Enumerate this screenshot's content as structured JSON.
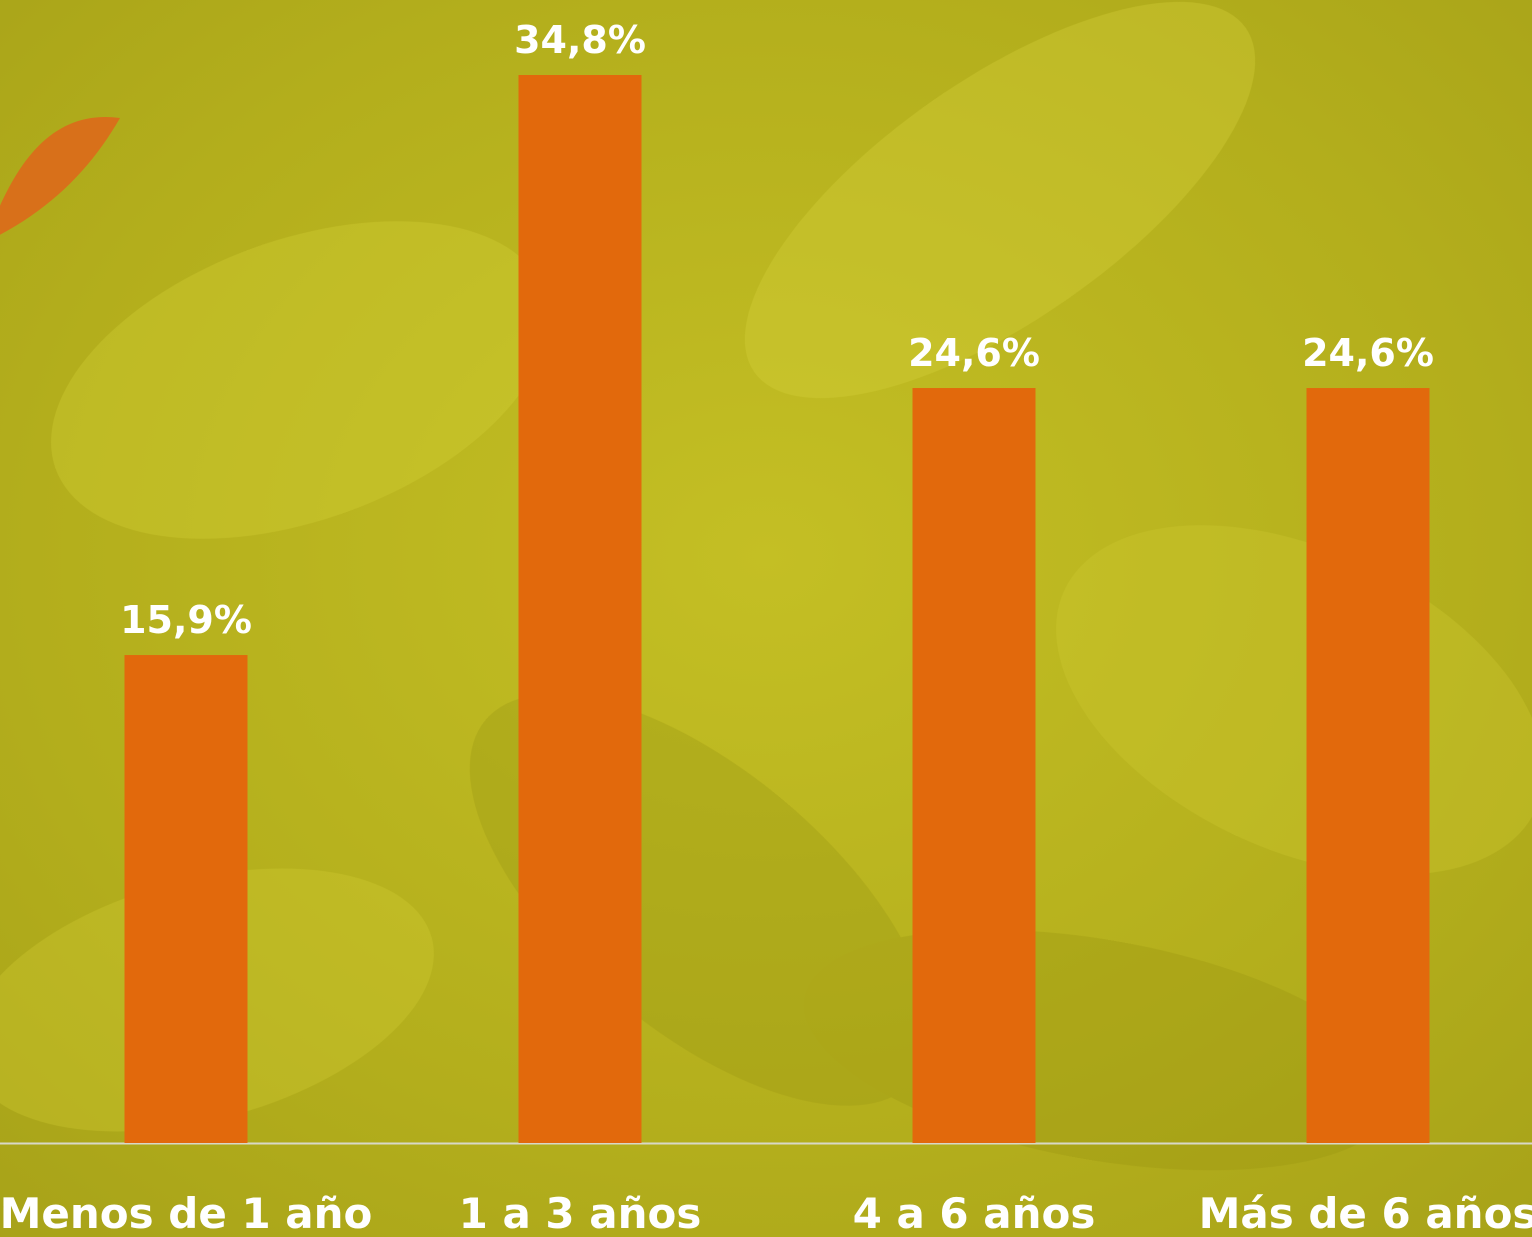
{
  "chart_data": {
    "type": "bar",
    "categories": [
      "Menos de 1 año",
      "1 a 3 años",
      "4 a 6 años",
      "Más de 6 años"
    ],
    "values": [
      15.9,
      34.8,
      24.6,
      24.6
    ],
    "value_labels": [
      "15,9%",
      "34,8%",
      "24,6%",
      "24,6%"
    ],
    "color": "#e2690c"
  }
}
